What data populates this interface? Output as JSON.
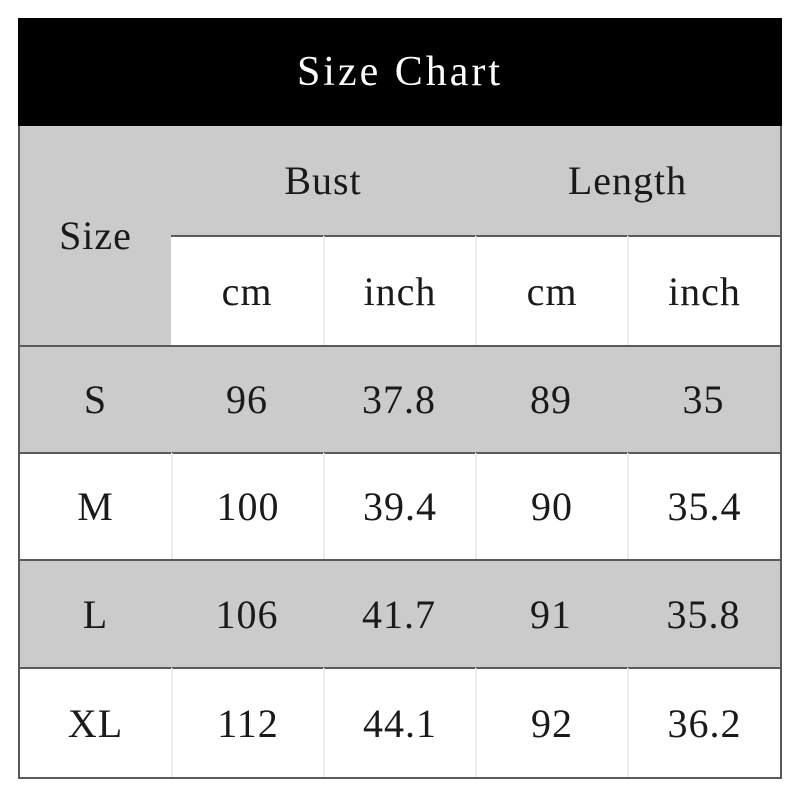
{
  "title": "Size Chart",
  "chart_data": {
    "type": "table",
    "title": "Size Chart",
    "corner_header": "Size",
    "column_groups": [
      {
        "label": "Bust",
        "units": [
          "cm",
          "inch"
        ]
      },
      {
        "label": "Length",
        "units": [
          "cm",
          "inch"
        ]
      }
    ],
    "unit_row": [
      "cm",
      "inch",
      "cm",
      "inch"
    ],
    "rows": [
      {
        "size": "S",
        "bust_cm": "96",
        "bust_inch": "37.8",
        "length_cm": "89",
        "length_inch": "35"
      },
      {
        "size": "M",
        "bust_cm": "100",
        "bust_inch": "39.4",
        "length_cm": "90",
        "length_inch": "35.4"
      },
      {
        "size": "L",
        "bust_cm": "106",
        "bust_inch": "41.7",
        "length_cm": "91",
        "length_inch": "35.8"
      },
      {
        "size": "XL",
        "bust_cm": "112",
        "bust_inch": "44.1",
        "length_cm": "92",
        "length_inch": "36.2"
      }
    ]
  },
  "colors": {
    "title_bar_bg": "#000000",
    "title_bar_text": "#ffffff",
    "shaded_row_bg": "#cbcbcb",
    "plain_row_bg": "#ffffff",
    "dark_border": "#5a5a5a",
    "light_divider": "#ececec",
    "text": "#1a1a1a"
  }
}
